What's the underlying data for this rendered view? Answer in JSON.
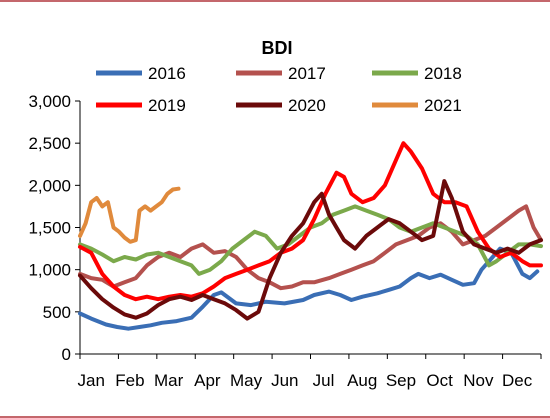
{
  "chart_data": {
    "type": "line",
    "title": "BDI",
    "xlabel": "",
    "ylabel": "",
    "categories": [
      "Jan",
      "Feb",
      "Mar",
      "Apr",
      "May",
      "Jun",
      "Jul",
      "Aug",
      "Sep",
      "Oct",
      "Nov",
      "Dec"
    ],
    "ylim": [
      0,
      3000
    ],
    "yticks": [
      "0",
      "500",
      "1,000",
      "1,500",
      "2,000",
      "2,500",
      "3,000"
    ],
    "ytick_values": [
      0,
      500,
      1000,
      1500,
      2000,
      2500,
      3000
    ],
    "grid": false,
    "legend_placement": "top",
    "series": [
      {
        "name": "2016",
        "color": "#3a6eb5",
        "points": [
          [
            0,
            480
          ],
          [
            0.3,
            420
          ],
          [
            0.7,
            350
          ],
          [
            1.0,
            320
          ],
          [
            1.3,
            300
          ],
          [
            1.6,
            320
          ],
          [
            1.9,
            340
          ],
          [
            2.2,
            370
          ],
          [
            2.6,
            390
          ],
          [
            3.0,
            430
          ],
          [
            3.3,
            560
          ],
          [
            3.6,
            700
          ],
          [
            3.8,
            730
          ],
          [
            4.2,
            600
          ],
          [
            4.6,
            580
          ],
          [
            5.0,
            620
          ],
          [
            5.5,
            600
          ],
          [
            6.0,
            640
          ],
          [
            6.3,
            700
          ],
          [
            6.7,
            740
          ],
          [
            7.0,
            700
          ],
          [
            7.3,
            640
          ],
          [
            7.6,
            680
          ],
          [
            8.0,
            720
          ],
          [
            8.3,
            760
          ],
          [
            8.6,
            800
          ],
          [
            8.9,
            900
          ],
          [
            9.1,
            950
          ],
          [
            9.4,
            900
          ],
          [
            9.7,
            940
          ],
          [
            10.0,
            880
          ],
          [
            10.3,
            820
          ],
          [
            10.6,
            840
          ],
          [
            10.8,
            1000
          ],
          [
            11.0,
            1100
          ],
          [
            11.3,
            1250
          ],
          [
            11.6,
            1200
          ],
          [
            11.9,
            950
          ],
          [
            12.1,
            900
          ],
          [
            12.3,
            980
          ]
        ]
      },
      {
        "name": "2017",
        "color": "#b4514e",
        "points": [
          [
            0,
            950
          ],
          [
            0.3,
            900
          ],
          [
            0.6,
            880
          ],
          [
            0.9,
            800
          ],
          [
            1.2,
            850
          ],
          [
            1.5,
            900
          ],
          [
            1.8,
            1050
          ],
          [
            2.1,
            1150
          ],
          [
            2.4,
            1200
          ],
          [
            2.7,
            1150
          ],
          [
            3.0,
            1250
          ],
          [
            3.3,
            1300
          ],
          [
            3.6,
            1200
          ],
          [
            3.9,
            1220
          ],
          [
            4.2,
            1150
          ],
          [
            4.5,
            1000
          ],
          [
            4.8,
            900
          ],
          [
            5.1,
            850
          ],
          [
            5.4,
            780
          ],
          [
            5.7,
            800
          ],
          [
            6.0,
            850
          ],
          [
            6.3,
            850
          ],
          [
            6.7,
            900
          ],
          [
            7.0,
            950
          ],
          [
            7.3,
            1000
          ],
          [
            7.6,
            1050
          ],
          [
            7.9,
            1100
          ],
          [
            8.2,
            1200
          ],
          [
            8.5,
            1300
          ],
          [
            8.8,
            1350
          ],
          [
            9.1,
            1400
          ],
          [
            9.4,
            1500
          ],
          [
            9.7,
            1550
          ],
          [
            10.0,
            1450
          ],
          [
            10.3,
            1300
          ],
          [
            10.6,
            1350
          ],
          [
            10.9,
            1400
          ],
          [
            11.2,
            1500
          ],
          [
            11.5,
            1600
          ],
          [
            11.8,
            1700
          ],
          [
            12.0,
            1750
          ],
          [
            12.2,
            1500
          ],
          [
            12.4,
            1350
          ]
        ]
      },
      {
        "name": "2018",
        "color": "#7ba94b",
        "points": [
          [
            0,
            1300
          ],
          [
            0.3,
            1250
          ],
          [
            0.6,
            1180
          ],
          [
            0.9,
            1100
          ],
          [
            1.2,
            1150
          ],
          [
            1.5,
            1120
          ],
          [
            1.8,
            1180
          ],
          [
            2.1,
            1200
          ],
          [
            2.4,
            1150
          ],
          [
            2.7,
            1100
          ],
          [
            3.0,
            1050
          ],
          [
            3.2,
            950
          ],
          [
            3.5,
            1000
          ],
          [
            3.8,
            1100
          ],
          [
            4.1,
            1250
          ],
          [
            4.4,
            1350
          ],
          [
            4.7,
            1450
          ],
          [
            5.0,
            1400
          ],
          [
            5.3,
            1250
          ],
          [
            5.6,
            1300
          ],
          [
            5.9,
            1400
          ],
          [
            6.2,
            1500
          ],
          [
            6.5,
            1550
          ],
          [
            6.8,
            1650
          ],
          [
            7.1,
            1700
          ],
          [
            7.4,
            1750
          ],
          [
            7.7,
            1700
          ],
          [
            8.0,
            1650
          ],
          [
            8.3,
            1600
          ],
          [
            8.6,
            1500
          ],
          [
            8.9,
            1450
          ],
          [
            9.2,
            1500
          ],
          [
            9.5,
            1550
          ],
          [
            9.8,
            1500
          ],
          [
            10.1,
            1450
          ],
          [
            10.4,
            1400
          ],
          [
            10.7,
            1300
          ],
          [
            11.0,
            1050
          ],
          [
            11.2,
            1100
          ],
          [
            11.5,
            1200
          ],
          [
            11.8,
            1300
          ],
          [
            12.1,
            1300
          ],
          [
            12.4,
            1280
          ]
        ]
      },
      {
        "name": "2019",
        "color": "#ff0000",
        "points": [
          [
            0,
            1270
          ],
          [
            0.3,
            1200
          ],
          [
            0.6,
            950
          ],
          [
            0.9,
            800
          ],
          [
            1.2,
            700
          ],
          [
            1.5,
            650
          ],
          [
            1.8,
            680
          ],
          [
            2.1,
            650
          ],
          [
            2.4,
            680
          ],
          [
            2.7,
            700
          ],
          [
            3.0,
            680
          ],
          [
            3.3,
            720
          ],
          [
            3.6,
            800
          ],
          [
            3.9,
            900
          ],
          [
            4.2,
            950
          ],
          [
            4.5,
            1000
          ],
          [
            4.8,
            1050
          ],
          [
            5.1,
            1100
          ],
          [
            5.4,
            1200
          ],
          [
            5.7,
            1250
          ],
          [
            6.0,
            1350
          ],
          [
            6.3,
            1600
          ],
          [
            6.6,
            1900
          ],
          [
            6.9,
            2150
          ],
          [
            7.1,
            2100
          ],
          [
            7.3,
            1900
          ],
          [
            7.6,
            1800
          ],
          [
            7.9,
            1850
          ],
          [
            8.2,
            2000
          ],
          [
            8.5,
            2300
          ],
          [
            8.7,
            2500
          ],
          [
            8.9,
            2400
          ],
          [
            9.2,
            2200
          ],
          [
            9.5,
            1900
          ],
          [
            9.8,
            1800
          ],
          [
            10.1,
            1800
          ],
          [
            10.4,
            1750
          ],
          [
            10.7,
            1450
          ],
          [
            11.0,
            1250
          ],
          [
            11.3,
            1150
          ],
          [
            11.6,
            1200
          ],
          [
            11.9,
            1100
          ],
          [
            12.1,
            1050
          ],
          [
            12.4,
            1050
          ]
        ]
      },
      {
        "name": "2020",
        "color": "#6b0a0a",
        "points": [
          [
            0,
            930
          ],
          [
            0.3,
            780
          ],
          [
            0.6,
            650
          ],
          [
            0.9,
            550
          ],
          [
            1.2,
            470
          ],
          [
            1.5,
            430
          ],
          [
            1.8,
            480
          ],
          [
            2.1,
            580
          ],
          [
            2.4,
            650
          ],
          [
            2.7,
            680
          ],
          [
            3.0,
            640
          ],
          [
            3.3,
            700
          ],
          [
            3.6,
            650
          ],
          [
            3.9,
            600
          ],
          [
            4.2,
            520
          ],
          [
            4.5,
            420
          ],
          [
            4.8,
            500
          ],
          [
            5.1,
            900
          ],
          [
            5.4,
            1200
          ],
          [
            5.7,
            1400
          ],
          [
            6.0,
            1550
          ],
          [
            6.3,
            1800
          ],
          [
            6.5,
            1900
          ],
          [
            6.7,
            1650
          ],
          [
            6.9,
            1500
          ],
          [
            7.1,
            1350
          ],
          [
            7.4,
            1250
          ],
          [
            7.7,
            1400
          ],
          [
            8.0,
            1500
          ],
          [
            8.3,
            1600
          ],
          [
            8.6,
            1550
          ],
          [
            8.9,
            1450
          ],
          [
            9.2,
            1350
          ],
          [
            9.5,
            1400
          ],
          [
            9.8,
            2050
          ],
          [
            10.0,
            1850
          ],
          [
            10.3,
            1450
          ],
          [
            10.6,
            1300
          ],
          [
            10.9,
            1250
          ],
          [
            11.2,
            1200
          ],
          [
            11.5,
            1250
          ],
          [
            11.8,
            1200
          ],
          [
            12.1,
            1300
          ],
          [
            12.4,
            1350
          ]
        ]
      },
      {
        "name": "2021",
        "color": "#e08a3c",
        "points": [
          [
            0,
            1400
          ],
          [
            0.15,
            1550
          ],
          [
            0.3,
            1800
          ],
          [
            0.45,
            1850
          ],
          [
            0.6,
            1750
          ],
          [
            0.75,
            1800
          ],
          [
            0.9,
            1500
          ],
          [
            1.05,
            1450
          ],
          [
            1.2,
            1380
          ],
          [
            1.35,
            1330
          ],
          [
            1.5,
            1350
          ],
          [
            1.6,
            1700
          ],
          [
            1.75,
            1750
          ],
          [
            1.9,
            1700
          ],
          [
            2.05,
            1750
          ],
          [
            2.2,
            1800
          ],
          [
            2.35,
            1900
          ],
          [
            2.5,
            1950
          ],
          [
            2.65,
            1960
          ]
        ]
      }
    ]
  }
}
